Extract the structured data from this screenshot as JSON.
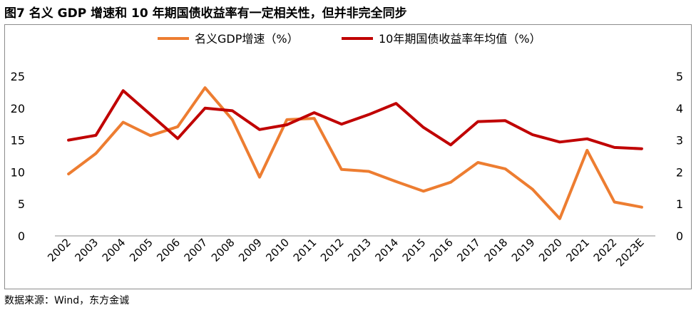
{
  "page": {
    "title": "图7  名义 GDP 增速和 10 年期国债收益率有一定相关性，但并非完全同步",
    "source": "数据来源：Wind，东方金诚"
  },
  "chart_data": {
    "type": "line",
    "title": "图7  名义 GDP 增速和 10 年期国债收益率有一定相关性，但并非完全同步",
    "categories": [
      "2002",
      "2003",
      "2004",
      "2005",
      "2006",
      "2007",
      "2008",
      "2009",
      "2010",
      "2011",
      "2012",
      "2013",
      "2014",
      "2015",
      "2016",
      "2017",
      "2018",
      "2019",
      "2020",
      "2021",
      "2022",
      "2023E"
    ],
    "left_axis": {
      "ylim": [
        0,
        25
      ],
      "ticks": [
        0,
        5,
        10,
        15,
        20,
        25
      ]
    },
    "right_axis": {
      "ylim": [
        0,
        5
      ],
      "ticks": [
        0,
        1,
        2,
        3,
        4,
        5
      ]
    },
    "legend_position": "top",
    "grid": false,
    "series": [
      {
        "name": "名义GDP增速（%）",
        "axis": "left",
        "color": "#ED7D31",
        "values": [
          9.7,
          12.9,
          17.8,
          15.7,
          17.1,
          23.2,
          18.2,
          9.2,
          18.2,
          18.4,
          10.4,
          10.1,
          8.5,
          7.0,
          8.4,
          11.5,
          10.5,
          7.3,
          2.7,
          13.4,
          5.3,
          4.5
        ]
      },
      {
        "name": "10年期国债收益率年均值（%）",
        "axis": "right",
        "color": "#C00000",
        "values": [
          3.0,
          3.15,
          4.55,
          3.8,
          3.05,
          4.0,
          3.92,
          3.33,
          3.48,
          3.86,
          3.5,
          3.8,
          4.15,
          3.4,
          2.85,
          3.58,
          3.61,
          3.17,
          2.94,
          3.04,
          2.77,
          2.73
        ]
      }
    ]
  }
}
